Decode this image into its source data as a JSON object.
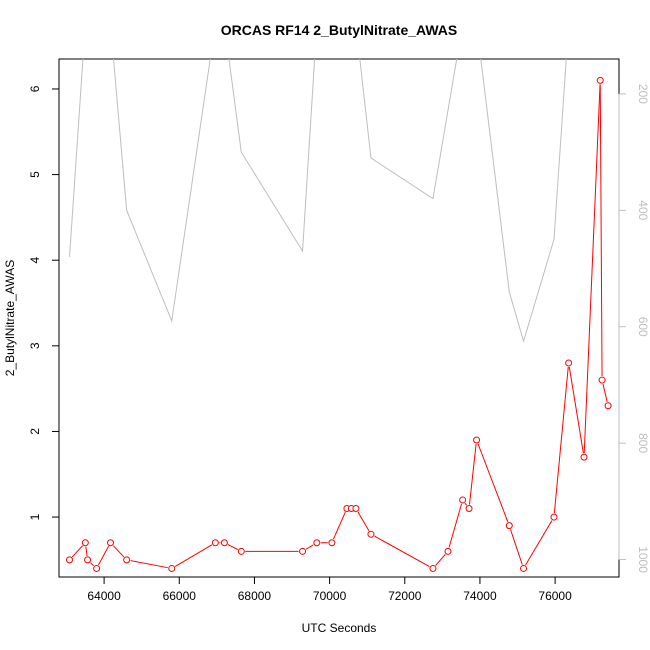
{
  "chart_data": {
    "type": "line",
    "title": "ORCAS RF14 2_ButylNitrate_AWAS",
    "xlabel": "UTC Seconds",
    "ylabel": "2_ButylNitrate_AWAS",
    "xlim": [
      62800,
      77700
    ],
    "ylim": [
      0.3,
      6.35
    ],
    "xticks": [
      64000,
      66000,
      68000,
      70000,
      72000,
      74000,
      76000
    ],
    "xtick_labels": [
      "64000",
      "66000",
      "68000",
      "70000",
      "72000",
      "74000",
      "76000"
    ],
    "yticks": [
      1,
      2,
      3,
      4,
      5,
      6
    ],
    "ytick_labels": [
      "1",
      "2",
      "3",
      "4",
      "5",
      "6"
    ],
    "y2lim": [
      1030,
      140
    ],
    "y2ticks": [
      200,
      400,
      600,
      800,
      1000
    ],
    "y2tick_labels": [
      "200",
      "400",
      "600",
      "800",
      "1000"
    ],
    "grid": false,
    "series": [
      {
        "axis": "left",
        "color": "#ff0000",
        "marker": "open-circle",
        "x": [
          63080,
          63500,
          63560,
          63800,
          64170,
          64600,
          65800,
          66960,
          67200,
          67650,
          69280,
          69660,
          70060,
          70460,
          70580,
          70700,
          71100,
          72750,
          73150,
          73540,
          73710,
          73910,
          74780,
          75160,
          75970,
          76360,
          76770,
          77200,
          77250,
          77410
        ],
        "y": [
          0.5,
          0.7,
          0.5,
          0.4,
          0.7,
          0.5,
          0.4,
          0.7,
          0.7,
          0.6,
          0.6,
          0.7,
          0.7,
          1.1,
          1.1,
          1.1,
          0.8,
          0.4,
          0.6,
          1.2,
          1.1,
          1.9,
          0.9,
          0.4,
          1.0,
          2.8,
          1.7,
          6.1,
          2.6,
          2.3
        ]
      },
      {
        "axis": "right",
        "color": "#bebebe",
        "marker": "none",
        "x": [
          63080,
          63500,
          63800,
          64170,
          64600,
          65800,
          66960,
          67200,
          67650,
          69280,
          69660,
          70060,
          70460,
          70580,
          70700,
          71100,
          72750,
          73540,
          73710,
          73910,
          74780,
          75160,
          75970,
          76360,
          76770,
          77200
        ],
        "y": [
          480,
          80,
          80,
          80,
          400,
          590,
          80,
          80,
          300,
          470,
          80,
          80,
          80,
          80,
          80,
          310,
          380,
          80,
          80,
          80,
          540,
          625,
          450,
          80,
          80,
          80
        ]
      }
    ]
  }
}
